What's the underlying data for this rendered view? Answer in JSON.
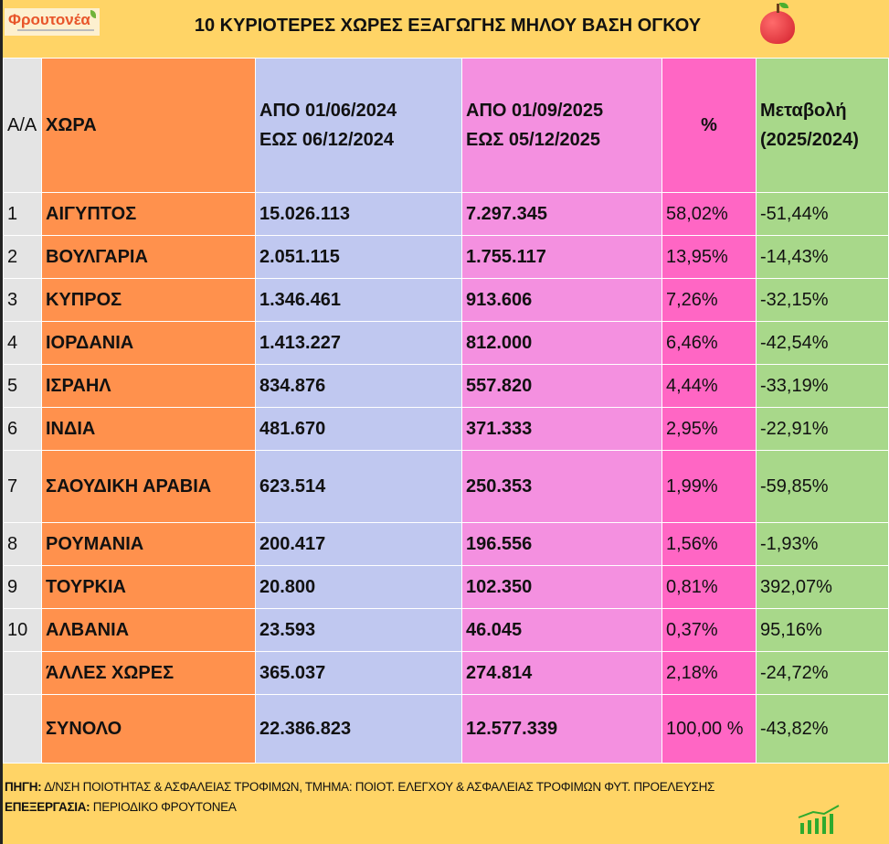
{
  "logo": {
    "text": "Φρουτονέα"
  },
  "title": "10 ΚΥΡΙΟΤΕΡΕΣ ΧΩΡΕΣ ΕΞΑΓΩΓΗΣ ΜΗΛΟΥ ΒΑΣΗ ΟΓΚΟΥ",
  "headers": {
    "aa": "Α/Α",
    "country": "ΧΩΡΑ",
    "p1a": "ΑΠΟ 01/06/2024",
    "p1b": "ΕΩΣ 06/12/2024",
    "p2a": "ΑΠΟ 01/09/2025",
    "p2b": "ΕΩΣ 05/12/2025",
    "pct": "%",
    "chg_a": "Μεταβολή",
    "chg_b": "(2025/2024)"
  },
  "rows": [
    {
      "aa": "1",
      "country": "ΑΙΓΥΠΤΟΣ",
      "v2024": "15.026.113",
      "v2025": "7.297.345",
      "pct": "58,02%",
      "chg": "-51,44%"
    },
    {
      "aa": "2",
      "country": "ΒΟΥΛΓΑΡΙΑ",
      "v2024": "2.051.115",
      "v2025": "1.755.117",
      "pct": "13,95%",
      "chg": "-14,43%"
    },
    {
      "aa": "3",
      "country": "ΚΥΠΡΟΣ",
      "v2024": "1.346.461",
      "v2025": "913.606",
      "pct": "7,26%",
      "chg": "-32,15%"
    },
    {
      "aa": "4",
      "country": "ΙΟΡΔΑΝΙΑ",
      "v2024": "1.413.227",
      "v2025": "812.000",
      "pct": "6,46%",
      "chg": "-42,54%"
    },
    {
      "aa": "5",
      "country": "ΙΣΡΑΗΛ",
      "v2024": "834.876",
      "v2025": "557.820",
      "pct": "4,44%",
      "chg": "-33,19%"
    },
    {
      "aa": "6",
      "country": "ΙΝΔΙΑ",
      "v2024": "481.670",
      "v2025": "371.333",
      "pct": "2,95%",
      "chg": "-22,91%"
    },
    {
      "aa": "7",
      "country": "ΣΑΟΥΔΙΚΗ ΑΡΑΒΙΑ",
      "v2024": "623.514",
      "v2025": "250.353",
      "pct": "1,99%",
      "chg": "-59,85%"
    },
    {
      "aa": "8",
      "country": "ΡΟΥΜΑΝΙΑ",
      "v2024": "200.417",
      "v2025": "196.556",
      "pct": "1,56%",
      "chg": "-1,93%"
    },
    {
      "aa": "9",
      "country": "ΤΟΥΡΚΙΑ",
      "v2024": "20.800",
      "v2025": "102.350",
      "pct": "0,81%",
      "chg": "392,07%"
    },
    {
      "aa": "10",
      "country": "ΑΛΒΑΝΙΑ",
      "v2024": "23.593",
      "v2025": "46.045",
      "pct": "0,37%",
      "chg": "95,16%"
    },
    {
      "aa": "",
      "country": "ΆΛΛΕΣ ΧΩΡΕΣ",
      "v2024": "365.037",
      "v2025": "274.814",
      "pct": "2,18%",
      "chg": "-24,72%"
    },
    {
      "aa": "",
      "country": "ΣΥΝΟΛΟ",
      "v2024": "22.386.823",
      "v2025": "12.577.339",
      "pct": "100,00 %",
      "chg": "-43,82%"
    }
  ],
  "footer": {
    "source_label": "ΠΗΓΗ:",
    "source": " Δ/ΝΣΗ ΠΟΙΟΤΗΤΑΣ & ΑΣΦΑΛΕΙΑΣ ΤΡΟΦΙΜΩΝ, ΤΜΗΜΑ: ΠΟΙΟΤ. ΕΛΕΓΧΟΥ & ΑΣΦΑΛΕΙΑΣ ΤΡΟΦΙΜΩΝ ΦΥΤ. ΠΡΟΕΛΕΥΣΗΣ",
    "proc_label": "ΕΠΕΞΕΡΓΑΣΙΑ:",
    "proc": " ΠΕΡΙΟΔΙΚΟ ΦΡΟΥΤΟΝΕΑ"
  }
}
